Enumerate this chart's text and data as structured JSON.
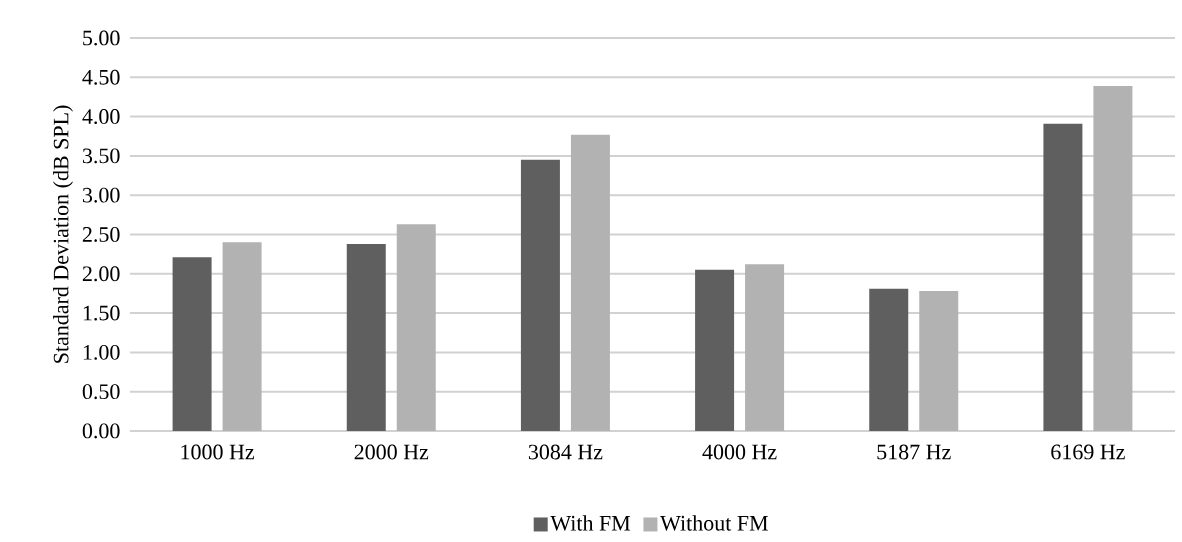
{
  "chart_data": {
    "type": "bar",
    "ylabel": "Standard Deviation (dB SPL)",
    "categories": [
      "1000 Hz",
      "2000 Hz",
      "3084 Hz",
      "4000 Hz",
      "5187 Hz",
      "6169 Hz"
    ],
    "series": [
      {
        "name": "With FM",
        "color": "#5f5f5f",
        "values": [
          2.21,
          2.38,
          3.45,
          2.05,
          1.81,
          3.91
        ]
      },
      {
        "name": "Without FM",
        "color": "#b2b2b2",
        "values": [
          2.4,
          2.63,
          3.77,
          2.12,
          1.78,
          4.39
        ]
      }
    ],
    "ylim": [
      0,
      5
    ],
    "yticks": [
      {
        "value": 0,
        "label": "0.00"
      },
      {
        "value": 0.5,
        "label": "0.50"
      },
      {
        "value": 1,
        "label": "1.00"
      },
      {
        "value": 1.5,
        "label": "1.50"
      },
      {
        "value": 2,
        "label": "2.00"
      },
      {
        "value": 2.5,
        "label": "2.50"
      },
      {
        "value": 3,
        "label": "3.00"
      },
      {
        "value": 3.5,
        "label": "3.50"
      },
      {
        "value": 4,
        "label": "4.00"
      },
      {
        "value": 4.5,
        "label": "4.50"
      },
      {
        "value": 5,
        "label": "5.00"
      }
    ],
    "grid": "y",
    "legend": "bottom"
  }
}
